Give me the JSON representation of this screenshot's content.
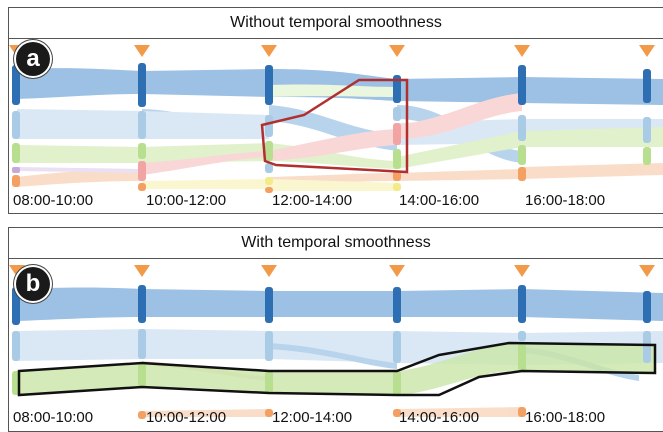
{
  "panels": [
    {
      "id": "a",
      "title": "Without temporal smoothness",
      "badge": "a",
      "time_slots": [
        "08:00-10:00",
        "10:00-12:00",
        "12:00-14:00",
        "14:00-16:00",
        "16:00-18:00"
      ]
    },
    {
      "id": "b",
      "title": "With temporal smoothness",
      "badge": "b",
      "time_slots": [
        "08:00-10:00",
        "10:00-12:00",
        "12:00-14:00",
        "14:00-16:00",
        "16:00-18:00"
      ]
    }
  ],
  "colors": {
    "dark_blue": "#2e6fb4",
    "light_blue": "#a9cbe6",
    "green": "#b7df8f",
    "pink": "#f2a3a3",
    "orange": "#f3a062",
    "yellow": "#f4ea8a",
    "purple": "#c7a8dc",
    "marker_orange": "#f29a48",
    "highlight_red": "#b03030",
    "highlight_black": "#111111"
  }
}
